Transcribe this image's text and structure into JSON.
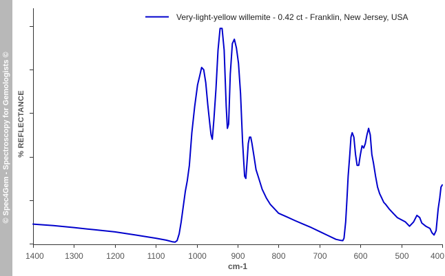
{
  "watermark": "© Spec4Gem - Spectroscopy for Gemologists ©",
  "chart_data": {
    "type": "line",
    "title": "",
    "xlabel": "cm-1",
    "ylabel": "% REFLECTANCE",
    "xlim": [
      1400,
      400
    ],
    "x_reversed": true,
    "ylim": [
      0,
      100
    ],
    "x_ticks": [
      1400,
      1300,
      1200,
      1100,
      1000,
      900,
      800,
      700,
      600,
      500,
      400
    ],
    "y_tick_labels_shown": false,
    "grid": false,
    "legend_position": "top-right",
    "series": [
      {
        "name": "Very-light-yellow willemite - 0.42 ct - Franklin, New Jersey, USA",
        "color": "#0000cc",
        "x": [
          1400,
          1350,
          1300,
          1250,
          1200,
          1150,
          1100,
          1075,
          1060,
          1053,
          1048,
          1043,
          1038,
          1033,
          1028,
          1023,
          1018,
          1012,
          1005,
          998,
          993,
          988,
          983,
          978,
          973,
          968,
          965,
          962,
          958,
          953,
          948,
          943,
          938,
          933,
          928,
          925,
          922,
          918,
          913,
          908,
          903,
          898,
          893,
          888,
          883,
          880,
          877,
          874,
          871,
          868,
          865,
          860,
          855,
          850,
          840,
          830,
          820,
          810,
          800,
          780,
          760,
          740,
          720,
          700,
          680,
          660,
          648,
          643,
          640,
          636,
          633,
          630,
          626,
          623,
          620,
          616,
          612,
          608,
          604,
          600,
          596,
          592,
          588,
          584,
          580,
          576,
          572,
          568,
          563,
          558,
          553,
          548,
          543,
          538,
          530,
          520,
          510,
          500,
          490,
          480,
          470,
          462,
          455,
          450,
          440,
          430,
          425,
          420,
          415,
          410,
          406,
          403,
          400
        ],
        "y": [
          9.0,
          8.3,
          7.4,
          6.4,
          5.4,
          4.0,
          2.5,
          1.6,
          0.9,
          0.7,
          1.4,
          4.5,
          10.0,
          17.0,
          24.0,
          29.0,
          36.0,
          51.0,
          63.0,
          73.0,
          77.0,
          81.0,
          80.0,
          74.0,
          64.0,
          55.0,
          50.0,
          48.0,
          57.0,
          71.0,
          89.0,
          99.0,
          99.0,
          89.0,
          63.0,
          53.0,
          55.0,
          78.0,
          92.0,
          94.0,
          90.0,
          83.0,
          69.0,
          47.0,
          31.0,
          30.0,
          38.0,
          46.0,
          49.0,
          49.0,
          46.0,
          40.0,
          34.0,
          31.0,
          25.0,
          21.0,
          18.0,
          16.0,
          14.0,
          12.3,
          10.6,
          9.0,
          7.4,
          5.6,
          3.8,
          2.0,
          1.5,
          1.4,
          2.5,
          10.0,
          20.0,
          31.0,
          41.0,
          49.0,
          51.0,
          49.0,
          41.0,
          36.0,
          36.0,
          41.0,
          45.0,
          44.0,
          46.0,
          50.0,
          53.0,
          50.0,
          41.0,
          37.0,
          31.0,
          26.0,
          23.0,
          21.0,
          19.0,
          18.0,
          16.0,
          14.0,
          12.0,
          11.0,
          10.0,
          8.0,
          10.0,
          13.0,
          12.0,
          9.5,
          8.0,
          7.0,
          5.0,
          4.0,
          6.0,
          16.0,
          21.0,
          26.0,
          27.0
        ]
      }
    ]
  }
}
